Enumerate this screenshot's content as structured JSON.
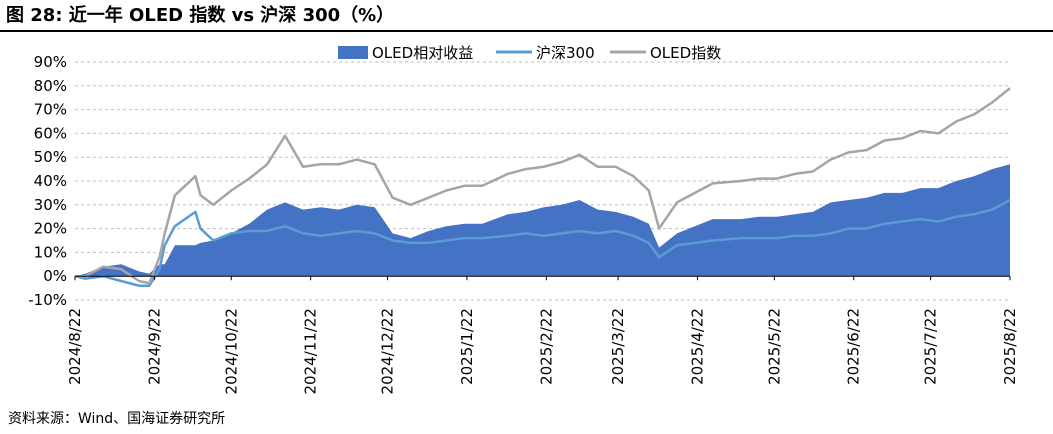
{
  "header": {
    "title": "图 28: 近一年 OLED 指数 vs 沪深 300（%）"
  },
  "footer": {
    "source": "资料来源：Wind、国海证券研究所"
  },
  "colors": {
    "relative": "#4472C4",
    "hs300": "#5B9BD5",
    "oled": "#A5A5A5",
    "grid": "#BFBFBF"
  },
  "chart_data": {
    "type": "line",
    "title": "",
    "xlabel": "",
    "ylabel": "",
    "ylim": [
      -10,
      90
    ],
    "yticks": [
      "-10%",
      "0%",
      "10%",
      "20%",
      "30%",
      "40%",
      "50%",
      "60%",
      "70%",
      "80%",
      "90%"
    ],
    "ytick_values": [
      -10,
      0,
      10,
      20,
      30,
      40,
      50,
      60,
      70,
      80,
      90
    ],
    "xticks": [
      "2024/8/22",
      "2024/9/22",
      "2024/10/22",
      "2024/11/22",
      "2024/12/22",
      "2025/1/22",
      "2025/2/22",
      "2025/3/22",
      "2025/4/22",
      "2025/5/22",
      "2025/6/22",
      "2025/7/22",
      "2025/8/22"
    ],
    "grid": true,
    "legend": "top-center",
    "x": [
      "2024/8/22",
      "2024/8/26",
      "2024/9/2",
      "2024/9/9",
      "2024/9/16",
      "2024/9/20",
      "2024/9/24",
      "2024/9/26",
      "2024/9/30",
      "2024/10/8",
      "2024/10/10",
      "2024/10/15",
      "2024/10/22",
      "2024/10/29",
      "2024/11/5",
      "2024/11/12",
      "2024/11/19",
      "2024/11/26",
      "2024/12/3",
      "2024/12/10",
      "2024/12/17",
      "2024/12/24",
      "2024/12/31",
      "2025/1/7",
      "2025/1/14",
      "2025/1/21",
      "2025/1/28",
      "2025/2/7",
      "2025/2/14",
      "2025/2/21",
      "2025/2/28",
      "2025/3/7",
      "2025/3/14",
      "2025/3/21",
      "2025/3/28",
      "2025/4/3",
      "2025/4/7",
      "2025/4/14",
      "2025/4/21",
      "2025/4/28",
      "2025/5/9",
      "2025/5/16",
      "2025/5/23",
      "2025/5/30",
      "2025/6/6",
      "2025/6/13",
      "2025/6/20",
      "2025/6/27",
      "2025/7/4",
      "2025/7/11",
      "2025/7/18",
      "2025/7/25",
      "2025/8/1",
      "2025/8/8",
      "2025/8/15",
      "2025/8/22"
    ],
    "series": [
      {
        "name": "OLED相对收益",
        "kind": "area",
        "values": [
          0,
          1,
          4,
          5,
          2,
          1,
          5,
          5,
          13,
          13,
          14,
          15,
          18,
          22,
          28,
          31,
          28,
          29,
          28,
          30,
          29,
          18,
          16,
          19,
          21,
          22,
          22,
          26,
          27,
          29,
          30,
          32,
          28,
          27,
          25,
          22,
          12,
          18,
          21,
          24,
          24,
          25,
          25,
          26,
          27,
          31,
          32,
          33,
          35,
          35,
          37,
          37,
          40,
          42,
          45,
          47
        ]
      },
      {
        "name": "沪深300",
        "kind": "line",
        "values": [
          0,
          -1,
          0,
          -2,
          -4,
          -4,
          3,
          13,
          21,
          27,
          20,
          15,
          18,
          19,
          19,
          21,
          18,
          17,
          18,
          19,
          18,
          15,
          14,
          14,
          15,
          16,
          16,
          17,
          18,
          17,
          18,
          19,
          18,
          19,
          17,
          14,
          8,
          13,
          14,
          15,
          16,
          16,
          16,
          17,
          17,
          18,
          20,
          20,
          22,
          23,
          24,
          23,
          25,
          26,
          28,
          32
        ]
      },
      {
        "name": "OLED指数",
        "kind": "line",
        "values": [
          0,
          0,
          4,
          3,
          -2,
          -3,
          8,
          18,
          34,
          42,
          34,
          30,
          36,
          41,
          47,
          59,
          46,
          47,
          47,
          49,
          47,
          33,
          30,
          33,
          36,
          38,
          38,
          43,
          45,
          46,
          48,
          51,
          46,
          46,
          42,
          36,
          20,
          31,
          35,
          39,
          40,
          41,
          41,
          43,
          44,
          49,
          52,
          53,
          57,
          58,
          61,
          60,
          65,
          68,
          73,
          79
        ]
      }
    ]
  }
}
